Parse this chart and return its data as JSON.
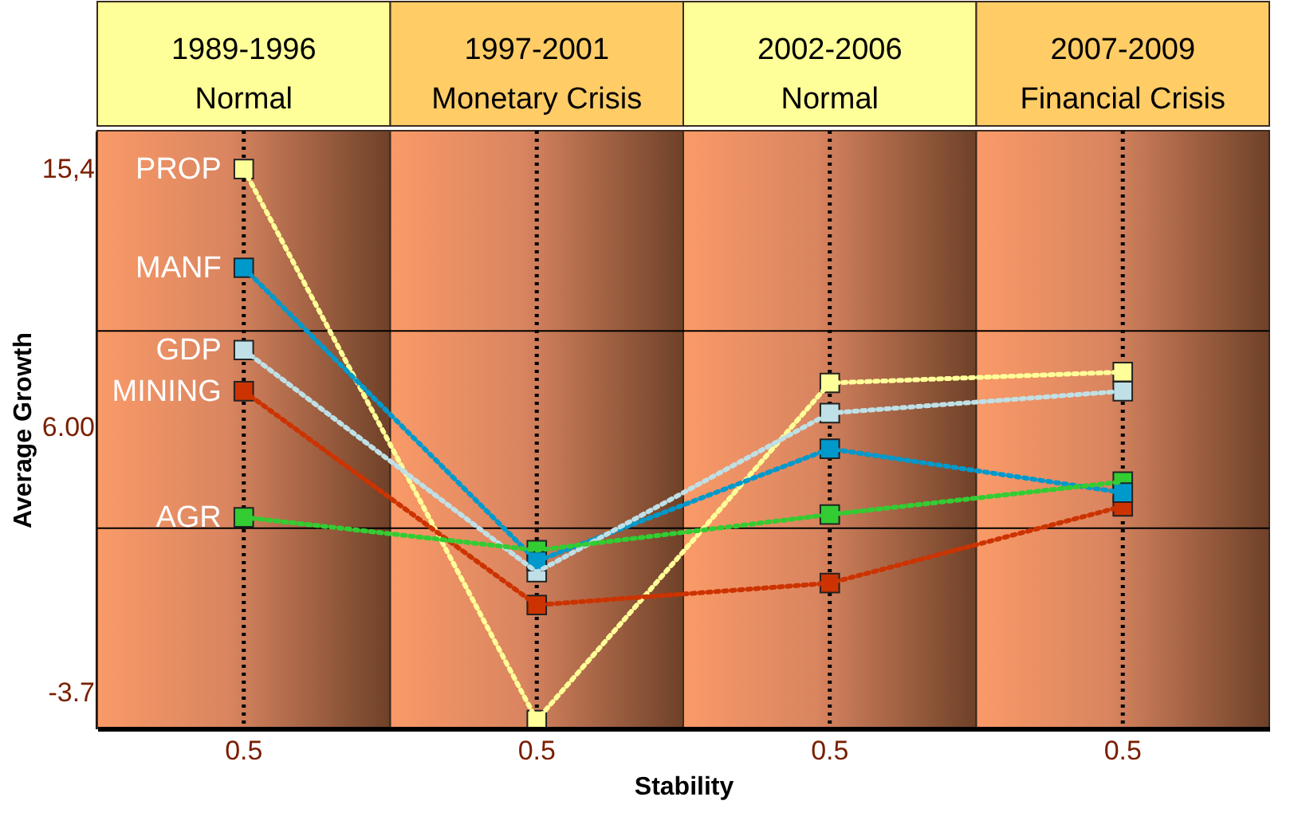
{
  "chart_data": {
    "type": "line",
    "xlabel": "Stability",
    "ylabel": "Average Growth",
    "categories": [
      "0.5",
      "0.5",
      "0.5",
      "0.5"
    ],
    "annotations": [
      "1989-1996 Normal",
      "1997-2001 Monetary Crisis",
      "2002-2006 Normal",
      "2007-2009 Financial Crisis"
    ],
    "ylim": [
      -5,
      16.8
    ],
    "yticks": [
      {
        "value": 15.4,
        "label": "15,4"
      },
      {
        "value": 6,
        "label": "6.00"
      },
      {
        "value": -3.7,
        "label": "-3.7"
      }
    ],
    "grid": "x",
    "legend": false,
    "marker": "square",
    "line_style": "dotted",
    "ref_lines": [
      {
        "axis": "y",
        "value": 2.3,
        "color": "#000000"
      },
      {
        "axis": "y",
        "value": 9.5,
        "color": "#000000"
      }
    ],
    "series": [
      {
        "name": "PROP",
        "color": "#ffff99",
        "values": [
          15.4,
          -4.7,
          7.6,
          8.0
        ]
      },
      {
        "name": "MANF",
        "color": "#0099cc",
        "values": [
          11.8,
          1.1,
          5.2,
          3.6
        ]
      },
      {
        "name": "GDP",
        "color": "#bfe0e6",
        "values": [
          8.8,
          0.7,
          6.5,
          7.3
        ]
      },
      {
        "name": "MINING",
        "color": "#cc3300",
        "values": [
          7.3,
          -0.5,
          0.3,
          3.1
        ]
      },
      {
        "name": "AGR",
        "color": "#33cc33",
        "values": [
          2.7,
          1.5,
          2.8,
          4.0
        ]
      }
    ]
  }
}
